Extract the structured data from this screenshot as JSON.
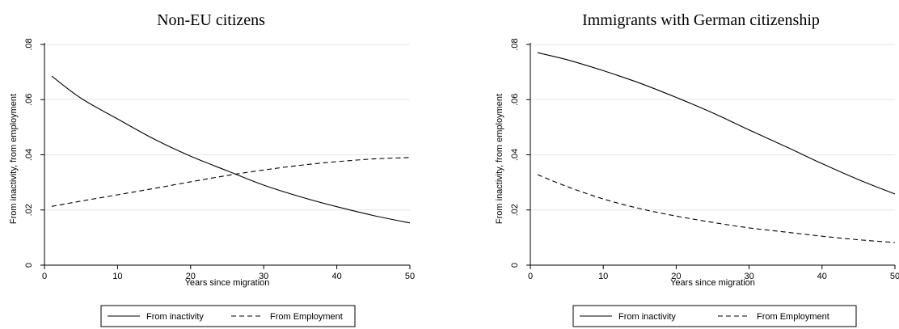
{
  "chart_data": [
    {
      "type": "line",
      "title": "Non-EU citizens",
      "xlabel": "Years since migration",
      "ylabel": "From inactivity, from employment",
      "xlim": [
        0,
        50
      ],
      "ylim": [
        0,
        0.08
      ],
      "xticks": [
        0,
        10,
        20,
        30,
        40,
        50
      ],
      "yticks": [
        0,
        0.02,
        0.04,
        0.06,
        0.08
      ],
      "xtick_labels": [
        "0",
        "10",
        "20",
        "30",
        "40",
        "50"
      ],
      "ytick_labels": [
        "0",
        ".02",
        ".04",
        ".06",
        ".08"
      ],
      "grid": true,
      "legend_position": "bottom",
      "x": [
        1,
        5,
        10,
        15,
        20,
        25,
        30,
        35,
        40,
        45,
        50
      ],
      "series": [
        {
          "name": "From inactivity",
          "style": "solid",
          "values": [
            0.0685,
            0.0605,
            0.053,
            0.0457,
            0.0395,
            0.0342,
            0.029,
            0.0248,
            0.0212,
            0.018,
            0.0153
          ]
        },
        {
          "name": "From Employment",
          "style": "dashed",
          "values": [
            0.0213,
            0.0232,
            0.0255,
            0.0278,
            0.0302,
            0.0325,
            0.0345,
            0.0362,
            0.0375,
            0.0385,
            0.039
          ]
        }
      ]
    },
    {
      "type": "line",
      "title": "Immigrants with German citizenship",
      "xlabel": "Years since migration",
      "ylabel": "From inactivity, from employment",
      "xlim": [
        0,
        50
      ],
      "ylim": [
        0,
        0.08
      ],
      "xticks": [
        0,
        10,
        20,
        30,
        40,
        50
      ],
      "yticks": [
        0,
        0.02,
        0.04,
        0.06,
        0.08
      ],
      "xtick_labels": [
        "0",
        "10",
        "20",
        "30",
        "40",
        "50"
      ],
      "ytick_labels": [
        "0",
        ".02",
        ".04",
        ".06",
        ".08"
      ],
      "grid": true,
      "legend_position": "bottom",
      "x": [
        1,
        5,
        10,
        15,
        20,
        25,
        30,
        35,
        40,
        45,
        50
      ],
      "series": [
        {
          "name": "From inactivity",
          "style": "solid",
          "values": [
            0.077,
            0.0745,
            0.0705,
            0.066,
            0.0608,
            0.0552,
            0.049,
            0.043,
            0.0368,
            0.031,
            0.0258
          ]
        },
        {
          "name": "From Employment",
          "style": "dashed",
          "values": [
            0.0328,
            0.0285,
            0.024,
            0.0205,
            0.0178,
            0.0155,
            0.0135,
            0.012,
            0.0105,
            0.0092,
            0.0082
          ]
        }
      ]
    }
  ]
}
